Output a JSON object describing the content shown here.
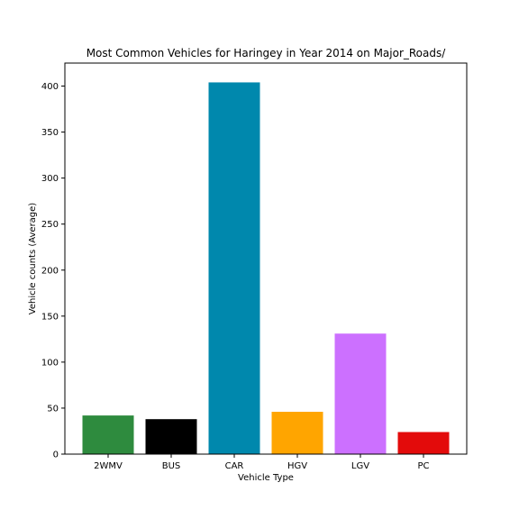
{
  "chart_data": {
    "type": "bar",
    "title": "Most Common Vehicles for Haringey in Year 2014 on Major_Roads/",
    "xlabel": "Vehicle Type",
    "ylabel": "Vehicle counts (Average)",
    "categories": [
      "2WMV",
      "BUS",
      "CAR",
      "HGV",
      "LGV",
      "PC"
    ],
    "values": [
      42,
      38,
      404,
      46,
      131,
      24
    ],
    "colors": [
      "#2e8b3e",
      "#000000",
      "#0088ad",
      "#ffa500",
      "#cc70ff",
      "#e30b0b"
    ],
    "ylim": [
      0,
      425
    ],
    "yticks": [
      0,
      50,
      100,
      150,
      200,
      250,
      300,
      350,
      400
    ],
    "grid": false,
    "legend": "none"
  }
}
